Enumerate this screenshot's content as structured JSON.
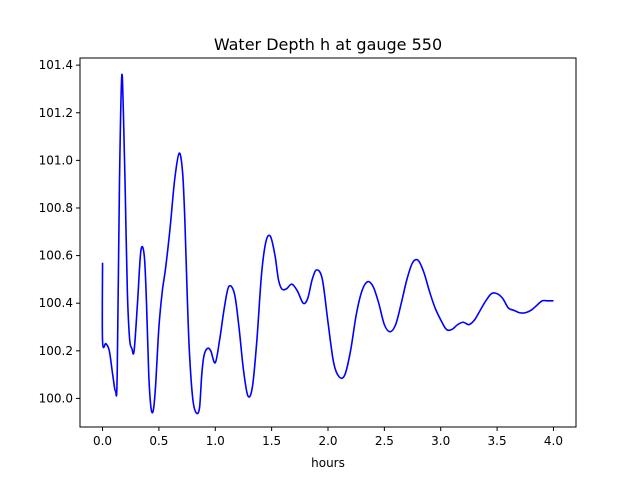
{
  "chart_data": {
    "type": "line",
    "title": "Water Depth h at gauge 550",
    "xlabel": "hours",
    "ylabel": "",
    "xlim": [
      -0.2,
      4.2
    ],
    "ylim": [
      99.88,
      101.43
    ],
    "xticks": [
      0.0,
      0.5,
      1.0,
      1.5,
      2.0,
      2.5,
      3.0,
      3.5,
      4.0
    ],
    "xtick_labels": [
      "0.0",
      "0.5",
      "1.0",
      "1.5",
      "2.0",
      "2.5",
      "3.0",
      "3.5",
      "4.0"
    ],
    "yticks": [
      100.0,
      100.2,
      100.4,
      100.6,
      100.8,
      101.0,
      101.2,
      101.4
    ],
    "ytick_labels": [
      "100.0",
      "100.2",
      "100.4",
      "100.6",
      "100.8",
      "101.0",
      "101.2",
      "101.4"
    ],
    "grid": false,
    "series": [
      {
        "color": "#0000ff",
        "x": [
          0.0,
          0.0,
          0.03,
          0.06,
          0.09,
          0.115,
          0.13,
          0.15,
          0.17,
          0.185,
          0.2,
          0.22,
          0.24,
          0.26,
          0.28,
          0.31,
          0.34,
          0.37,
          0.39,
          0.41,
          0.43,
          0.45,
          0.47,
          0.5,
          0.53,
          0.56,
          0.6,
          0.64,
          0.68,
          0.71,
          0.73,
          0.75,
          0.77,
          0.8,
          0.83,
          0.86,
          0.88,
          0.9,
          0.93,
          0.96,
          1.0,
          1.04,
          1.08,
          1.12,
          1.17,
          1.21,
          1.25,
          1.29,
          1.33,
          1.37,
          1.41,
          1.45,
          1.49,
          1.53,
          1.56,
          1.59,
          1.63,
          1.68,
          1.73,
          1.78,
          1.82,
          1.86,
          1.9,
          1.95,
          2.0,
          2.05,
          2.1,
          2.15,
          2.2,
          2.25,
          2.3,
          2.35,
          2.4,
          2.45,
          2.5,
          2.55,
          2.6,
          2.65,
          2.7,
          2.75,
          2.8,
          2.85,
          2.9,
          2.95,
          3.0,
          3.05,
          3.1,
          3.15,
          3.2,
          3.25,
          3.3,
          3.35,
          3.4,
          3.45,
          3.5,
          3.55,
          3.6,
          3.65,
          3.7,
          3.75,
          3.8,
          3.85,
          3.9,
          3.95,
          4.0
        ],
        "y": [
          100.57,
          100.24,
          100.23,
          100.2,
          100.1,
          100.03,
          100.1,
          100.9,
          101.35,
          101.2,
          100.9,
          100.45,
          100.25,
          100.21,
          100.2,
          100.4,
          100.62,
          100.6,
          100.4,
          100.1,
          99.96,
          99.95,
          100.05,
          100.3,
          100.45,
          100.55,
          100.72,
          100.92,
          101.03,
          100.95,
          100.75,
          100.45,
          100.2,
          100.0,
          99.94,
          99.96,
          100.1,
          100.18,
          100.21,
          100.2,
          100.15,
          100.25,
          100.38,
          100.47,
          100.44,
          100.3,
          100.12,
          100.01,
          100.05,
          100.25,
          100.52,
          100.66,
          100.68,
          100.6,
          100.5,
          100.46,
          100.46,
          100.48,
          100.45,
          100.4,
          100.42,
          100.5,
          100.54,
          100.5,
          100.32,
          100.15,
          100.09,
          100.1,
          100.2,
          100.35,
          100.45,
          100.49,
          100.47,
          100.4,
          100.31,
          100.28,
          100.31,
          100.4,
          100.5,
          100.57,
          100.58,
          100.53,
          100.45,
          100.38,
          100.33,
          100.29,
          100.29,
          100.31,
          100.32,
          100.31,
          100.33,
          100.37,
          100.41,
          100.44,
          100.44,
          100.42,
          100.38,
          100.37,
          100.36,
          100.36,
          100.37,
          100.39,
          100.41,
          100.41,
          100.41
        ]
      }
    ]
  }
}
